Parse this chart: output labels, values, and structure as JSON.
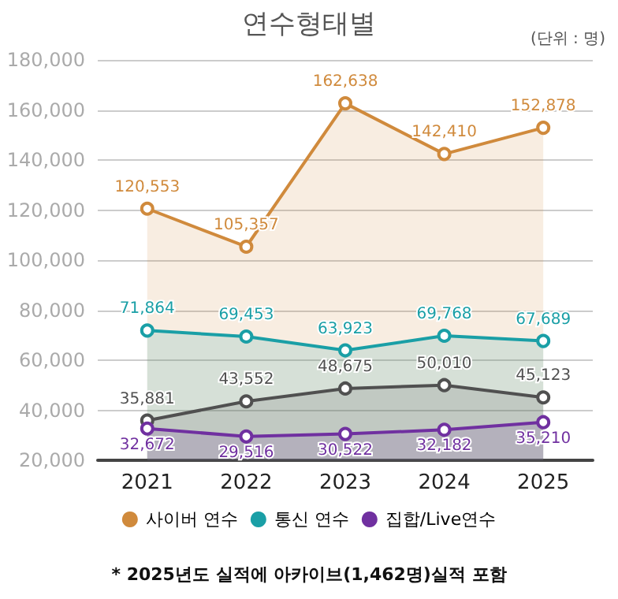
{
  "chart_data": {
    "type": "area",
    "title": "연수형태별",
    "annotations": [
      "(단위 : 명)",
      "* 2025년도 실적에 아카이브(1,462명)실적 포함"
    ],
    "categories": [
      "2021",
      "2022",
      "2023",
      "2024",
      "2025"
    ],
    "series": [
      {
        "name": "사이버 연수",
        "color": "#d08a3c",
        "values": [
          120553,
          105357,
          162638,
          142410,
          152878
        ],
        "value_labels": [
          "120,553",
          "105,357",
          "162,638",
          "142,410",
          "152,878"
        ]
      },
      {
        "name": "통신 연수",
        "color": "#1a9fa6",
        "values": [
          71864,
          69453,
          63923,
          69768,
          67689
        ],
        "value_labels": [
          "71,864",
          "69,453",
          "63,923",
          "69,768",
          "67,689"
        ]
      },
      {
        "color": "#505050",
        "values": [
          35881,
          43552,
          48675,
          50010,
          45123
        ],
        "value_labels": [
          "35,881",
          "43,552",
          "48,675",
          "50,010",
          "45,123"
        ]
      },
      {
        "name": "집합/Live연수",
        "color": "#7030a0",
        "values": [
          32672,
          29516,
          30522,
          32182,
          35210
        ],
        "value_labels": [
          "32,672",
          "29,516",
          "30,522",
          "32,182",
          "35,210"
        ]
      }
    ],
    "ylim": [
      20000,
      180000
    ],
    "yticks": [
      {
        "value": 20000,
        "label": "20,000"
      },
      {
        "value": 40000,
        "label": "40,000"
      },
      {
        "value": 60000,
        "label": "60,000"
      },
      {
        "value": 80000,
        "label": "80,000"
      },
      {
        "value": 100000,
        "label": "100,000"
      },
      {
        "value": 120000,
        "label": "120,000"
      },
      {
        "value": 140000,
        "label": "140,000"
      },
      {
        "value": 160000,
        "label": "160,000"
      },
      {
        "value": 180000,
        "label": "180,000"
      }
    ],
    "grid": "y",
    "legend": "bottom",
    "marker": "circle"
  }
}
